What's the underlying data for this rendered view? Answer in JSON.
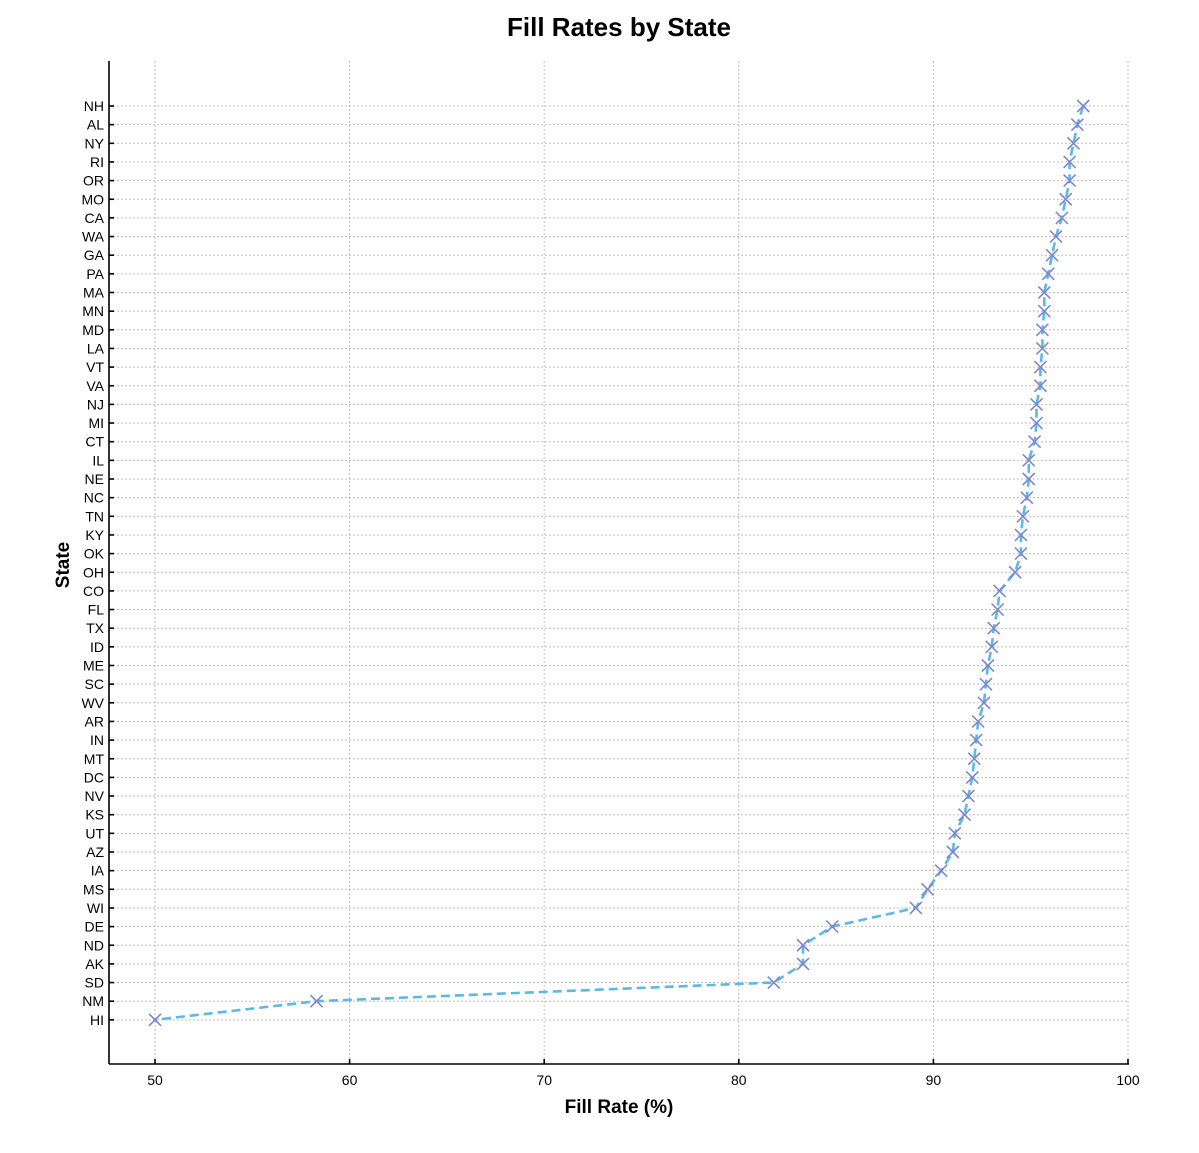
{
  "chart_data": {
    "type": "line",
    "title": "Fill Rates by State",
    "xlabel": "Fill Rate (%)",
    "ylabel": "State",
    "xlim": [
      47.7,
      100
    ],
    "xticks": [
      50,
      60,
      70,
      80,
      90,
      100
    ],
    "grid": true,
    "marker": "x",
    "line_style": "dashed",
    "line_color": "#5bb9e3",
    "marker_color": "#7e87cf",
    "categories": [
      "NH",
      "AL",
      "NY",
      "RI",
      "OR",
      "MO",
      "CA",
      "WA",
      "GA",
      "PA",
      "MA",
      "MN",
      "MD",
      "LA",
      "VT",
      "VA",
      "NJ",
      "MI",
      "CT",
      "IL",
      "NE",
      "NC",
      "TN",
      "KY",
      "OK",
      "OH",
      "CO",
      "FL",
      "TX",
      "ID",
      "ME",
      "SC",
      "WV",
      "AR",
      "IN",
      "MT",
      "DC",
      "NV",
      "KS",
      "UT",
      "AZ",
      "IA",
      "MS",
      "WI",
      "DE",
      "ND",
      "AK",
      "SD",
      "NM",
      "HI"
    ],
    "series": [
      {
        "values": [
          97.7,
          97.4,
          97.2,
          97.0,
          97.0,
          96.8,
          96.6,
          96.3,
          96.1,
          95.9,
          95.7,
          95.7,
          95.6,
          95.6,
          95.5,
          95.5,
          95.3,
          95.3,
          95.2,
          94.9,
          94.9,
          94.8,
          94.6,
          94.5,
          94.5,
          94.2,
          93.4,
          93.3,
          93.1,
          93.0,
          92.8,
          92.7,
          92.6,
          92.3,
          92.2,
          92.1,
          92.0,
          91.8,
          91.6,
          91.1,
          91.0,
          90.4,
          89.7,
          89.1,
          84.8,
          83.3,
          83.3,
          81.8,
          58.3,
          50.0
        ]
      }
    ]
  }
}
